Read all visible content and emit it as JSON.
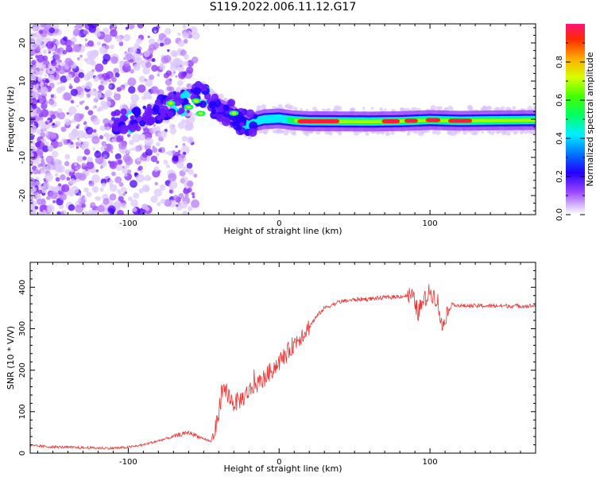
{
  "title": "S119.2022.006.11.12.G17",
  "chart_data": [
    {
      "type": "heatmap",
      "xlabel": "Height of straight line (km)",
      "ylabel": "Frequency (Hz)",
      "xlim": [
        -165,
        170
      ],
      "ylim": [
        -25,
        25
      ],
      "xticks": [
        -100,
        0,
        100
      ],
      "yticks": [
        -20,
        -10,
        0,
        10,
        20
      ],
      "colorbar": {
        "label": "Normalized spectral amplitude",
        "range": [
          0,
          1
        ],
        "ticks": [
          0.0,
          0.2,
          0.4,
          0.6,
          0.8
        ]
      },
      "ridge": {
        "x": [
          -165,
          -130,
          -100,
          -90,
          -80,
          -70,
          -60,
          -52,
          -45,
          -40,
          -30,
          -25,
          -20,
          -15,
          -10,
          0,
          10,
          20,
          60,
          80,
          100,
          120,
          140,
          170
        ],
        "y": [
          1,
          0.5,
          -1,
          0,
          2,
          4,
          5,
          7,
          4,
          3,
          1,
          -0.5,
          -1.5,
          -0.5,
          0,
          0.2,
          -0.3,
          -0.5,
          -0.6,
          -0.5,
          -0.2,
          -0.4,
          -0.3,
          -0.2
        ]
      }
    },
    {
      "type": "line",
      "xlabel": "Height of straight line (km)",
      "ylabel": "SNR (10 * V/V)",
      "xlim": [
        -165,
        170
      ],
      "ylim": [
        0,
        460
      ],
      "xticks": [
        -100,
        0,
        100
      ],
      "yticks": [
        0,
        100,
        200,
        300,
        400
      ],
      "series": [
        {
          "color": "#ee3333",
          "x": [
            -165,
            -150,
            -130,
            -110,
            -100,
            -90,
            -80,
            -70,
            -60,
            -50,
            -45,
            -42,
            -40,
            -38,
            -35,
            -32,
            -30,
            -25,
            -20,
            -15,
            -10,
            -5,
            0,
            5,
            10,
            15,
            20,
            25,
            30,
            40,
            50,
            60,
            70,
            80,
            88,
            90,
            92,
            95,
            100,
            105,
            108,
            110,
            115,
            120,
            130,
            140,
            150,
            160,
            170
          ],
          "y": [
            18,
            15,
            13,
            12,
            14,
            20,
            30,
            40,
            50,
            35,
            28,
            60,
            100,
            140,
            150,
            130,
            120,
            130,
            150,
            165,
            180,
            200,
            220,
            240,
            265,
            285,
            305,
            330,
            350,
            365,
            370,
            372,
            375,
            378,
            380,
            360,
            340,
            360,
            390,
            370,
            300,
            330,
            360,
            355,
            355,
            355,
            355,
            355,
            355
          ]
        }
      ]
    }
  ]
}
